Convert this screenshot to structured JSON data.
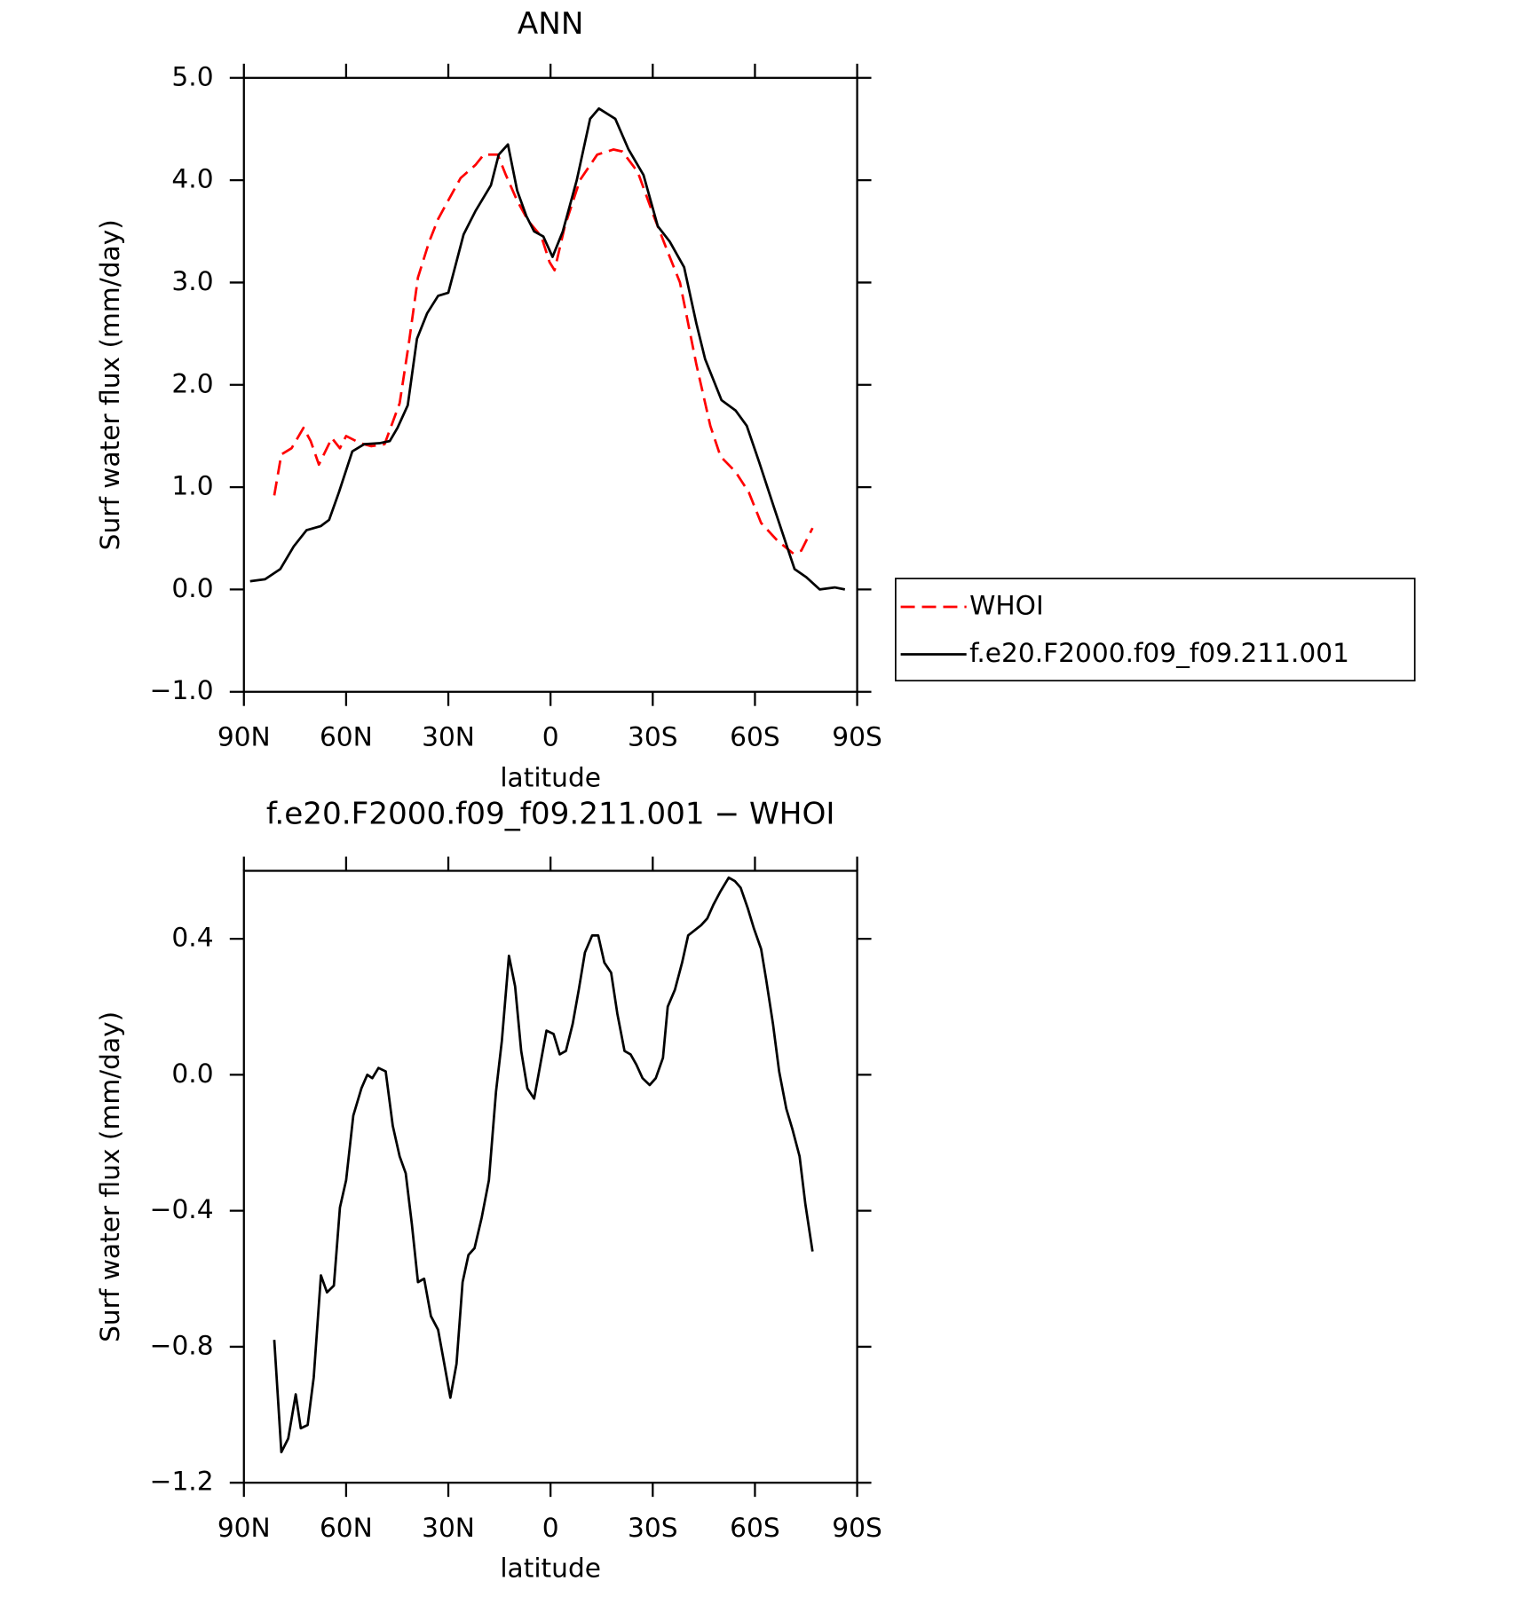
{
  "chart_data": [
    {
      "type": "line",
      "title": "ANN",
      "xlabel": "latitude",
      "ylabel": "Surf water flux (mm/day)",
      "xlim": [
        90,
        -90
      ],
      "xticks": [
        {
          "value": 90,
          "label": "90N"
        },
        {
          "value": 60,
          "label": "60N"
        },
        {
          "value": 30,
          "label": "30N"
        },
        0,
        {
          "value": -30,
          "label": "30S"
        },
        {
          "value": -60,
          "label": "60S"
        },
        {
          "value": -90,
          "label": "90S"
        }
      ],
      "ylim": [
        -1,
        5
      ],
      "yticks": [
        {
          "value": -1,
          "label": "−1.0"
        },
        {
          "value": 0,
          "label": "0.0"
        },
        {
          "value": 1,
          "label": "1.0"
        },
        {
          "value": 2,
          "label": "2.0"
        },
        {
          "value": 3,
          "label": "3.0"
        },
        {
          "value": 4,
          "label": "4.0"
        },
        {
          "value": 5,
          "label": "5.0"
        }
      ],
      "series": [
        {
          "name": "WHOI",
          "color": "#ff0000",
          "dashed": true,
          "x": [
            81.1,
            79,
            76,
            72.5,
            70.4,
            68,
            64.2,
            61.8,
            60,
            55.8,
            52.6,
            48.7,
            44.3,
            41.6,
            38.9,
            35.6,
            33,
            30.9,
            26.4,
            22,
            19.6,
            15.5,
            13.1,
            9.8,
            6.5,
            2.7,
            0.3,
            -1.2,
            -4.2,
            -8.6,
            -13.7,
            -18.5,
            -21.1,
            -25.6,
            -30.3,
            -34.4,
            -38,
            -42.8,
            -46.9,
            -49.9,
            -54.3,
            -58.2,
            -61.8,
            -66.5,
            -71.3,
            -73.6,
            -76.9
          ],
          "values": [
            0.92,
            1.32,
            1.38,
            1.58,
            1.45,
            1.22,
            1.48,
            1.38,
            1.5,
            1.43,
            1.4,
            1.42,
            1.82,
            2.4,
            3.05,
            3.4,
            3.62,
            3.75,
            4.02,
            4.15,
            4.25,
            4.25,
            4.05,
            3.8,
            3.6,
            3.45,
            3.2,
            3.12,
            3.55,
            4.0,
            4.25,
            4.3,
            4.28,
            4.08,
            3.65,
            3.3,
            3.0,
            2.2,
            1.6,
            1.3,
            1.15,
            0.95,
            0.65,
            0.48,
            0.35,
            0.38,
            0.6
          ]
        },
        {
          "name": "f.e20.F2000.f09_f09.211.001",
          "color": "#000000",
          "dashed": false,
          "x": [
            88.2,
            83.8,
            79.3,
            75.4,
            71.6,
            67.4,
            65,
            62.1,
            58.2,
            54.7,
            50.2,
            47.2,
            44.9,
            41.9,
            39.2,
            36.2,
            33,
            30,
            25.5,
            22,
            17.5,
            15.2,
            12.5,
            9.8,
            7.1,
            4.8,
            2.1,
            -0.6,
            -3.6,
            -7.7,
            -11.6,
            -14.2,
            -19,
            -22.9,
            -27.3,
            -31.5,
            -35,
            -39.2,
            -42.8,
            -45.4,
            -50.2,
            -54.3,
            -57.6,
            -61.2,
            -65.6,
            -68.6,
            -71.6,
            -75.1,
            -79,
            -83.4,
            -86.4
          ],
          "values": [
            0.08,
            0.1,
            0.2,
            0.42,
            0.58,
            0.62,
            0.68,
            0.95,
            1.35,
            1.42,
            1.43,
            1.45,
            1.58,
            1.8,
            2.45,
            2.7,
            2.87,
            2.9,
            3.47,
            3.7,
            3.95,
            4.25,
            4.35,
            3.9,
            3.65,
            3.5,
            3.45,
            3.25,
            3.5,
            4.0,
            4.6,
            4.7,
            4.6,
            4.3,
            4.05,
            3.55,
            3.4,
            3.15,
            2.6,
            2.25,
            1.85,
            1.75,
            1.6,
            1.25,
            0.8,
            0.5,
            0.2,
            0.12,
            0.0,
            0.02,
            0.0
          ]
        }
      ]
    },
    {
      "type": "line",
      "title": "f.e20.F2000.f09_f09.211.001 − WHOI",
      "xlabel": "latitude",
      "ylabel": "Surf water flux (mm/day)",
      "xlim": [
        90,
        -90
      ],
      "xticks": [
        {
          "value": 90,
          "label": "90N"
        },
        {
          "value": 60,
          "label": "60N"
        },
        {
          "value": 30,
          "label": "30N"
        },
        0,
        {
          "value": -30,
          "label": "30S"
        },
        {
          "value": -60,
          "label": "60S"
        },
        {
          "value": -90,
          "label": "90S"
        }
      ],
      "ylim": [
        -1.2,
        0.6
      ],
      "yticks": [
        {
          "value": -1.2,
          "label": "−1.2"
        },
        {
          "value": -0.8,
          "label": "−0.8"
        },
        {
          "value": -0.4,
          "label": "−0.4"
        },
        {
          "value": 0,
          "label": "0.0"
        },
        0.4
      ],
      "color": "#000000",
      "x": [
        81.1,
        79,
        77,
        74.8,
        73.3,
        71.3,
        69.5,
        67.4,
        65.6,
        63.6,
        61.8,
        60,
        57.9,
        55.5,
        53.8,
        52.3,
        50.5,
        48.4,
        46.3,
        44.3,
        42.5,
        40.7,
        38.9,
        37.1,
        35.1,
        33,
        31.2,
        29.4,
        27.6,
        25.8,
        24.1,
        22.3,
        20.2,
        18.1,
        16,
        14.3,
        12.2,
        10.4,
        8.6,
        6.8,
        4.8,
        3,
        1.2,
        -0.9,
        -2.7,
        -4.5,
        -6.5,
        -8.3,
        -10.1,
        -12.2,
        -14,
        -15.8,
        -17.8,
        -19.6,
        -21.7,
        -23.5,
        -25.2,
        -27,
        -29.1,
        -30.9,
        -33,
        -34.4,
        -36.5,
        -38.6,
        -40.4,
        -44.2,
        -46,
        -47.8,
        -49.9,
        -52.3,
        -54.1,
        -55.8,
        -57.9,
        -59.7,
        -61.8,
        -63.3,
        -65.3,
        -67.1,
        -69.2,
        -71,
        -73.1,
        -74.8,
        -76.9
      ],
      "values": [
        -0.78,
        -1.11,
        -1.07,
        -0.94,
        -1.04,
        -1.03,
        -0.89,
        -0.59,
        -0.64,
        -0.62,
        -0.39,
        -0.31,
        -0.12,
        -0.04,
        0.0,
        -0.01,
        0.02,
        0.01,
        -0.15,
        -0.24,
        -0.29,
        -0.44,
        -0.61,
        -0.6,
        -0.71,
        -0.75,
        -0.85,
        -0.95,
        -0.85,
        -0.61,
        -0.53,
        -0.51,
        -0.42,
        -0.31,
        -0.05,
        0.1,
        0.35,
        0.26,
        0.07,
        -0.04,
        -0.07,
        0.03,
        0.13,
        0.12,
        0.06,
        0.07,
        0.15,
        0.25,
        0.36,
        0.41,
        0.41,
        0.33,
        0.3,
        0.18,
        0.07,
        0.06,
        0.03,
        -0.01,
        -0.03,
        -0.01,
        0.05,
        0.2,
        0.25,
        0.33,
        0.41,
        0.44,
        0.46,
        0.5,
        0.54,
        0.58,
        0.57,
        0.55,
        0.49,
        0.43,
        0.37,
        0.28,
        0.15,
        0.01,
        -0.1,
        -0.16,
        -0.24,
        -0.38,
        -0.52
      ]
    }
  ]
}
